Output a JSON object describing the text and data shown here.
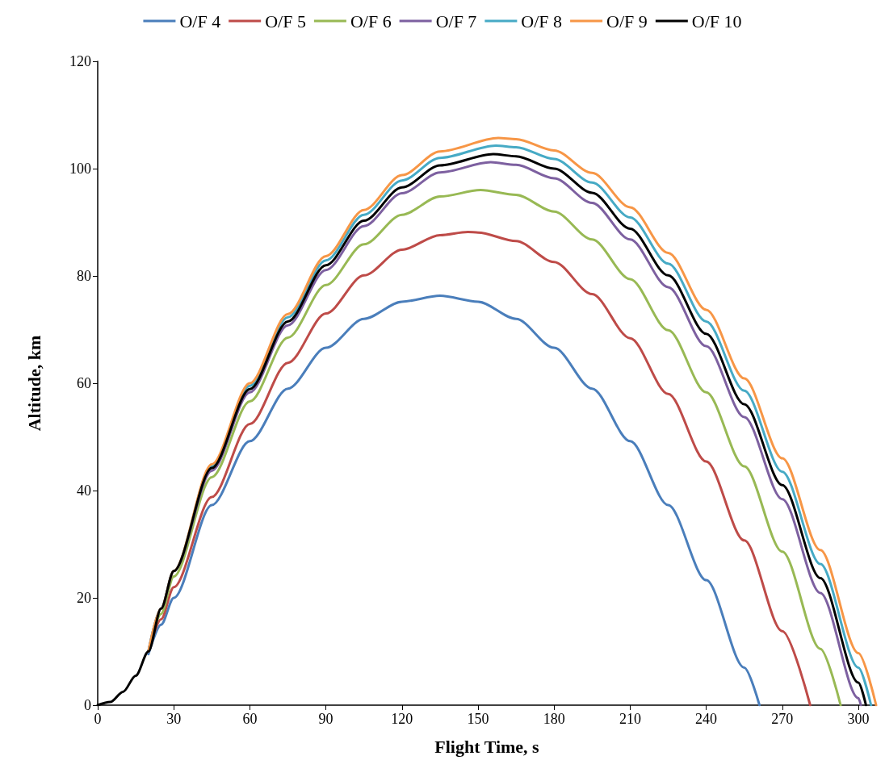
{
  "chart_data": {
    "type": "line",
    "xlabel": "Flight Time, s",
    "ylabel": "Altitude, km",
    "xlim": [
      0,
      307
    ],
    "xticks": [
      0,
      30,
      60,
      90,
      120,
      150,
      180,
      210,
      240,
      270,
      300
    ],
    "ylim": [
      0,
      120
    ],
    "yticks": [
      0,
      20,
      40,
      60,
      80,
      100,
      120
    ],
    "grid": false,
    "legend": "top",
    "marker": "none",
    "line_style": "solid",
    "series": [
      {
        "name": "O/F 4",
        "color": "#4a7ebb",
        "x": [
          20,
          25,
          30,
          45,
          60,
          75,
          90,
          105,
          120,
          135,
          150,
          165,
          180,
          195,
          210,
          225,
          240,
          255,
          261
        ],
        "values": [
          9.5,
          15,
          20,
          37.3,
          49.2,
          59.0,
          66.6,
          72.0,
          75.2,
          76.3,
          75.2,
          72.0,
          66.6,
          59.0,
          49.2,
          37.3,
          23.3,
          7.0,
          0
        ]
      },
      {
        "name": "O/F 5",
        "color": "#be4b48",
        "x": [
          20,
          25,
          30,
          45,
          60,
          75,
          90,
          105,
          120,
          135,
          146,
          150,
          165,
          180,
          195,
          210,
          225,
          240,
          255,
          270,
          281
        ],
        "values": [
          10,
          16,
          22,
          38.8,
          52.4,
          63.8,
          73.0,
          80.1,
          84.9,
          87.6,
          88.2,
          88.1,
          86.5,
          82.6,
          76.6,
          68.4,
          58.0,
          45.4,
          30.7,
          13.8,
          0
        ]
      },
      {
        "name": "O/F 6",
        "color": "#98b954",
        "x": [
          20,
          25,
          30,
          45,
          60,
          75,
          90,
          105,
          120,
          135,
          151,
          165,
          180,
          195,
          210,
          225,
          240,
          255,
          270,
          285,
          293
        ],
        "values": [
          10,
          17,
          24,
          42.5,
          56.6,
          68.5,
          78.3,
          85.9,
          91.4,
          94.8,
          96,
          95.1,
          92.0,
          86.8,
          79.4,
          69.9,
          58.3,
          44.5,
          28.6,
          10.5,
          0
        ]
      },
      {
        "name": "O/F 7",
        "color": "#7d60a0",
        "x": [
          20,
          25,
          30,
          45,
          60,
          75,
          90,
          105,
          120,
          135,
          155,
          165,
          180,
          195,
          210,
          225,
          240,
          255,
          270,
          285,
          300,
          301
        ],
        "values": [
          10,
          18,
          25,
          43.7,
          58.3,
          70.8,
          81.1,
          89.3,
          95.4,
          99.3,
          101.2,
          100.7,
          98.2,
          93.6,
          86.8,
          77.9,
          66.9,
          53.7,
          38.4,
          20.9,
          1.3,
          0
        ]
      },
      {
        "name": "O/F 8",
        "color": "#46aac5",
        "x": [
          20,
          25,
          30,
          45,
          60,
          75,
          90,
          105,
          120,
          135,
          157,
          165,
          180,
          195,
          210,
          225,
          240,
          255,
          270,
          285,
          300,
          305
        ],
        "values": [
          10,
          18,
          25,
          44.6,
          59.5,
          72.3,
          82.9,
          91.4,
          97.8,
          102.0,
          104.3,
          104.0,
          101.8,
          97.4,
          90.9,
          82.3,
          71.5,
          58.6,
          43.5,
          26.3,
          7.0,
          0
        ]
      },
      {
        "name": "O/F 9",
        "color": "#f79646",
        "x": [
          20,
          25,
          30,
          45,
          60,
          75,
          90,
          105,
          120,
          135,
          158,
          165,
          180,
          195,
          210,
          225,
          240,
          255,
          270,
          285,
          300,
          307
        ],
        "values": [
          10,
          18,
          25,
          44.9,
          60.0,
          72.9,
          83.7,
          92.3,
          98.8,
          103.2,
          105.7,
          105.5,
          103.4,
          99.2,
          92.8,
          84.3,
          73.7,
          60.9,
          46.0,
          28.9,
          9.7,
          0
        ]
      },
      {
        "name": "O/F 10",
        "color": "#000000",
        "x": [
          0,
          5,
          10,
          15,
          20,
          25,
          30,
          45,
          60,
          75,
          90,
          105,
          120,
          135,
          156,
          165,
          180,
          195,
          210,
          225,
          240,
          255,
          270,
          285,
          300,
          303
        ],
        "values": [
          0,
          0.6,
          2.5,
          5.5,
          10,
          18,
          25,
          44.2,
          58.9,
          71.5,
          82.0,
          90.3,
          96.5,
          100.6,
          102.7,
          102.3,
          100.0,
          95.5,
          88.8,
          80.1,
          69.2,
          56.1,
          41.0,
          23.7,
          4.2,
          0
        ]
      }
    ]
  }
}
